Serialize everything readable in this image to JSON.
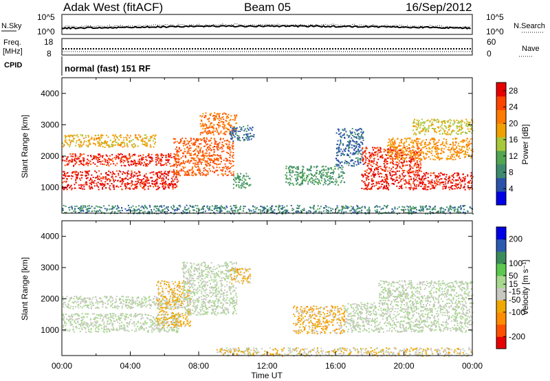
{
  "header": {
    "title": "Adak West (fitACF)",
    "beam": "Beam 05",
    "date": "16/Sep/2012"
  },
  "status_panels": {
    "left_labels": {
      "nsky": "N.Sky",
      "freq_line1": "Freq.",
      "freq_line2": "[MHz]",
      "cpid": "CPID"
    },
    "right_labels": {
      "nsearch": "N.Search",
      "nave": "Nave"
    },
    "noise_ticks_left": [
      "10^5",
      "10^0"
    ],
    "noise_ticks_right": [
      "10^5",
      "10^0"
    ],
    "freq_ticks": [
      "18",
      "8"
    ],
    "nave_ticks": [
      "60",
      "0"
    ],
    "cpid_text": "normal (fast) 151 RF"
  },
  "time_axis": {
    "ticks": [
      "00:00",
      "04:00",
      "08:00",
      "12:00",
      "16:00",
      "20:00",
      "00:00"
    ],
    "label": "Time UT"
  },
  "range_axis": {
    "ticks": [
      "1000",
      "2000",
      "3000",
      "4000"
    ],
    "label": "Slant Range [km]"
  },
  "colors": {
    "power_scale": [
      "#0000e6",
      "#2a52a8",
      "#3d8a6e",
      "#52a552",
      "#a8c83c",
      "#f0a000",
      "#ff7a00",
      "#ff4400",
      "#e60000"
    ],
    "velocity_scale": [
      "#e60000",
      "#ff5000",
      "#ff8c00",
      "#f0a800",
      "#c8c8c0",
      "#a8d890",
      "#5cc850",
      "#3a8a5a",
      "#2a5ab0",
      "#0000e6"
    ]
  },
  "chart_data": [
    {
      "type": "heatmap",
      "title": "Power",
      "xlabel": "Time UT",
      "ylabel": "Slant Range [km]",
      "x_ticks": [
        "00:00",
        "04:00",
        "08:00",
        "12:00",
        "16:00",
        "20:00",
        "00:00"
      ],
      "y_ticks": [
        1000,
        2000,
        3000,
        4000
      ],
      "xlim_hours": [
        0,
        24
      ],
      "ylim_km": [
        180,
        4500
      ],
      "colorbar": {
        "label": "Power [dB]",
        "ticks": [
          4,
          8,
          12,
          16,
          20,
          24,
          28
        ],
        "range": [
          0,
          30
        ]
      },
      "echo_regions": [
        {
          "t0": 0.0,
          "t1": 6.8,
          "r0": 950,
          "r1": 1550,
          "value": 28
        },
        {
          "t0": 0.0,
          "t1": 6.8,
          "r0": 1700,
          "r1": 2100,
          "value": 27
        },
        {
          "t0": 0.0,
          "t1": 5.5,
          "r0": 2300,
          "r1": 2700,
          "value": 18
        },
        {
          "t0": 6.5,
          "t1": 10.0,
          "r0": 1400,
          "r1": 2600,
          "value": 24
        },
        {
          "t0": 8.0,
          "t1": 10.2,
          "r0": 2700,
          "r1": 3400,
          "value": 22
        },
        {
          "t0": 9.8,
          "t1": 11.2,
          "r0": 2500,
          "r1": 3000,
          "value": 6
        },
        {
          "t0": 10.0,
          "t1": 11.0,
          "r0": 1000,
          "r1": 1500,
          "value": 10
        },
        {
          "t0": 13.0,
          "t1": 16.5,
          "r0": 1100,
          "r1": 1700,
          "value": 10
        },
        {
          "t0": 16.0,
          "t1": 17.6,
          "r0": 1700,
          "r1": 2900,
          "value": 6
        },
        {
          "t0": 17.5,
          "t1": 24.0,
          "r0": 950,
          "r1": 1500,
          "value": 28
        },
        {
          "t0": 17.5,
          "t1": 21.0,
          "r0": 1500,
          "r1": 2300,
          "value": 26
        },
        {
          "t0": 19.0,
          "t1": 24.0,
          "r0": 1900,
          "r1": 2600,
          "value": 20
        },
        {
          "t0": 20.5,
          "t1": 24.0,
          "r0": 2700,
          "r1": 3200,
          "value": 16
        },
        {
          "t0": 0.0,
          "t1": 24.0,
          "r0": 180,
          "r1": 450,
          "value": 8
        }
      ]
    },
    {
      "type": "heatmap",
      "title": "Velocity",
      "xlabel": "Time UT",
      "ylabel": "Slant Range [km]",
      "x_ticks": [
        "00:00",
        "04:00",
        "08:00",
        "12:00",
        "16:00",
        "20:00",
        "00:00"
      ],
      "y_ticks": [
        1000,
        2000,
        3000,
        4000
      ],
      "xlim_hours": [
        0,
        24
      ],
      "ylim_km": [
        180,
        4500
      ],
      "colorbar": {
        "label": "Velocity [m s⁻¹]",
        "ticks": [
          200,
          100,
          50,
          15,
          -15,
          -50,
          -100,
          -200
        ],
        "range": [
          -250,
          250
        ]
      },
      "echo_regions": [
        {
          "t0": 0.0,
          "t1": 6.8,
          "r0": 950,
          "r1": 1550,
          "value": 0
        },
        {
          "t0": 0.0,
          "t1": 6.8,
          "r0": 1700,
          "r1": 2100,
          "value": 0
        },
        {
          "t0": 5.5,
          "t1": 7.5,
          "r0": 1100,
          "r1": 2600,
          "value": -60
        },
        {
          "t0": 7.0,
          "t1": 10.2,
          "r0": 1500,
          "r1": 3200,
          "value": 0
        },
        {
          "t0": 9.8,
          "t1": 11.0,
          "r0": 2500,
          "r1": 3000,
          "value": -60
        },
        {
          "t0": 13.5,
          "t1": 16.5,
          "r0": 900,
          "r1": 1800,
          "value": -70
        },
        {
          "t0": 16.5,
          "t1": 24.0,
          "r0": 950,
          "r1": 1900,
          "value": 0
        },
        {
          "t0": 18.5,
          "t1": 24.0,
          "r0": 1900,
          "r1": 2600,
          "value": 0
        },
        {
          "t0": 9.0,
          "t1": 24.0,
          "r0": 180,
          "r1": 450,
          "value": -40
        }
      ]
    }
  ]
}
